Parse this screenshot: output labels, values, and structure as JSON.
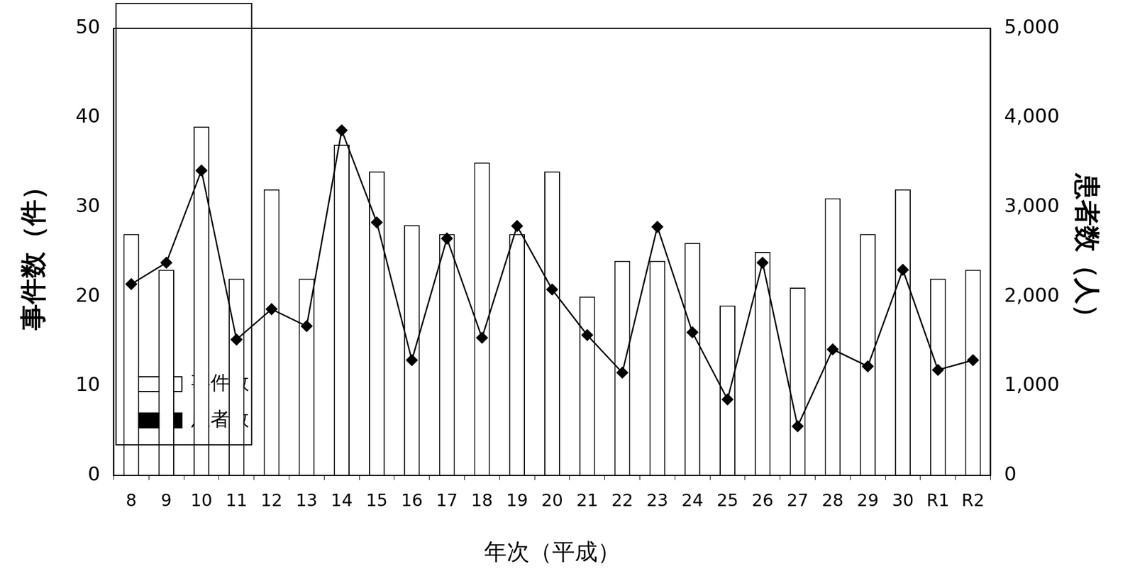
{
  "chart_data": {
    "type": "bar",
    "x_label": "年次（平成）",
    "y_label": "事件数（件）",
    "y2_label": "患者数（人）",
    "categories": [
      "8",
      "9",
      "10",
      "11",
      "12",
      "13",
      "14",
      "15",
      "16",
      "17",
      "18",
      "19",
      "20",
      "21",
      "22",
      "23",
      "24",
      "25",
      "26",
      "27",
      "28",
      "29",
      "30",
      "R1",
      "R2"
    ],
    "series": [
      {
        "name": "事件数",
        "type": "bar",
        "color": "#ffffff",
        "values": [
          27,
          23,
          39,
          22,
          32,
          22,
          37,
          34,
          28,
          27,
          35,
          27,
          34,
          20,
          24,
          24,
          26,
          19,
          25,
          21,
          31,
          27,
          32,
          22,
          23
        ]
      },
      {
        "name": "患者数",
        "type": "line",
        "color": "#000000",
        "marker": "diamond",
        "axis": "y2",
        "values": [
          2140,
          2380,
          3410,
          1520,
          1860,
          1670,
          3860,
          2830,
          1290,
          2650,
          1540,
          2790,
          2080,
          1570,
          1150,
          2780,
          1600,
          850,
          2380,
          550,
          1410,
          1220,
          2300,
          1180,
          1290
        ]
      }
    ],
    "ylim": [
      0,
      50
    ],
    "yticks": [
      0,
      10,
      20,
      30,
      40,
      50
    ],
    "y2lim": [
      0,
      5000
    ],
    "y2ticks": [
      0,
      {
        "value": 1000,
        "label": "1,000"
      },
      {
        "value": 2000,
        "label": "2,000"
      },
      {
        "value": 3000,
        "label": "3,000"
      },
      {
        "value": 4000,
        "label": "4,000"
      },
      {
        "value": 5000,
        "label": "5,000"
      }
    ],
    "legend": "upper right",
    "grid": false
  }
}
